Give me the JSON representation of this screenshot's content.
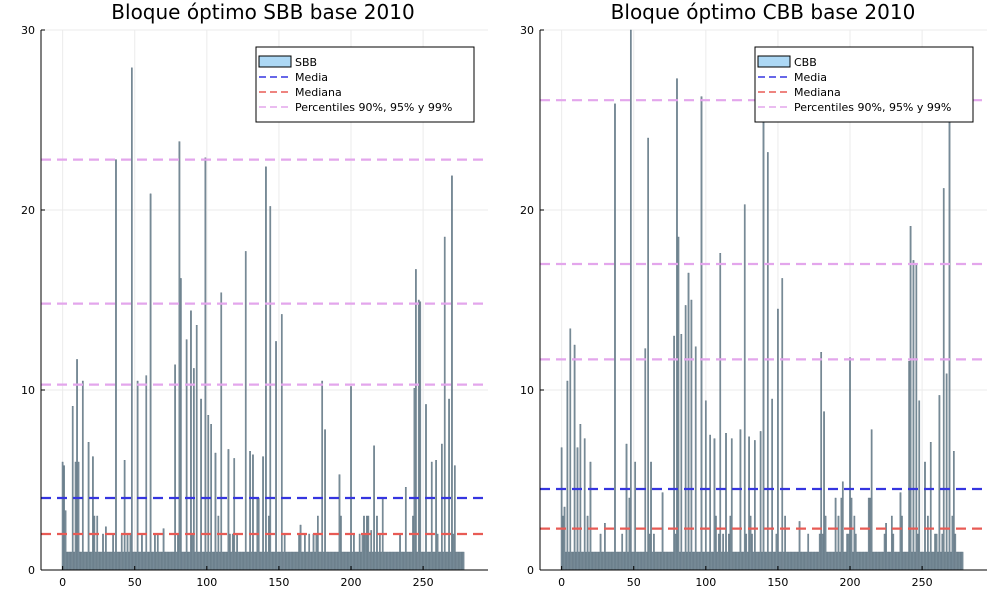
{
  "chart_data": [
    {
      "type": "bar",
      "title": "Bloque óptimo SBB base 2010",
      "xlabel": "",
      "ylabel": "",
      "xlim": [
        -15,
        295
      ],
      "ylim": [
        0,
        30
      ],
      "xticks": [
        0,
        50,
        100,
        150,
        200,
        250
      ],
      "yticks": [
        0,
        10,
        20,
        30
      ],
      "grid": true,
      "legend_position": "top-right",
      "legend": {
        "bars": "SBB",
        "mean": "Media",
        "median": "Mediana",
        "percentiles": "Percentiles 90%, 95% y 99%"
      },
      "reference_lines": {
        "mean": 4.0,
        "median": 2.0,
        "percentiles": [
          10.3,
          14.8,
          22.8
        ]
      },
      "peaks": [
        [
          0,
          6.0
        ],
        [
          1,
          5.8
        ],
        [
          2,
          3.3
        ],
        [
          7,
          9.1
        ],
        [
          9,
          6.0
        ],
        [
          10,
          11.7
        ],
        [
          11,
          6.0
        ],
        [
          14,
          10.5
        ],
        [
          18,
          7.1
        ],
        [
          21,
          6.3
        ],
        [
          30,
          2.4
        ],
        [
          37,
          22.8
        ],
        [
          43,
          6.1
        ],
        [
          48,
          27.9
        ],
        [
          52,
          10.5
        ],
        [
          58,
          10.8
        ],
        [
          61,
          20.9
        ],
        [
          70,
          2.3
        ],
        [
          78,
          11.4
        ],
        [
          81,
          23.8
        ],
        [
          82,
          16.2
        ],
        [
          86,
          12.8
        ],
        [
          89,
          14.4
        ],
        [
          91,
          11.2
        ],
        [
          93,
          13.6
        ],
        [
          96,
          9.5
        ],
        [
          99,
          22.9
        ],
        [
          101,
          8.6
        ],
        [
          103,
          8.1
        ],
        [
          106,
          6.5
        ],
        [
          110,
          15.4
        ],
        [
          115,
          6.7
        ],
        [
          119,
          6.2
        ],
        [
          127,
          17.7
        ],
        [
          130,
          6.6
        ],
        [
          132,
          6.4
        ],
        [
          139,
          6.3
        ],
        [
          141,
          22.4
        ],
        [
          144,
          20.2
        ],
        [
          148,
          12.7
        ],
        [
          152,
          14.2
        ],
        [
          165,
          2.5
        ],
        [
          180,
          10.5
        ],
        [
          182,
          7.8
        ],
        [
          192,
          5.3
        ],
        [
          200,
          10.2
        ],
        [
          214,
          2.2
        ],
        [
          216,
          6.9
        ],
        [
          234,
          2.0
        ],
        [
          238,
          4.6
        ],
        [
          244,
          10.1
        ],
        [
          245,
          16.7
        ],
        [
          247,
          15.0
        ],
        [
          248,
          14.9
        ],
        [
          252,
          9.2
        ],
        [
          256,
          6.0
        ],
        [
          259,
          6.1
        ],
        [
          263,
          7.0
        ],
        [
          265,
          18.5
        ],
        [
          268,
          9.5
        ],
        [
          270,
          21.9
        ],
        [
          272,
          5.8
        ]
      ]
    },
    {
      "type": "bar",
      "title": "Bloque óptimo CBB base 2010",
      "xlabel": "",
      "ylabel": "",
      "xlim": [
        -15,
        295
      ],
      "ylim": [
        0,
        30
      ],
      "xticks": [
        0,
        50,
        100,
        150,
        200,
        250
      ],
      "yticks": [
        0,
        10,
        20,
        30
      ],
      "grid": true,
      "legend_position": "top-right",
      "legend": {
        "bars": "CBB",
        "mean": "Media",
        "median": "Mediana",
        "percentiles": "Percentiles 90%, 95% y 99%"
      },
      "reference_lines": {
        "mean": 4.5,
        "median": 2.3,
        "percentiles": [
          11.7,
          17.0,
          26.1
        ]
      },
      "peaks": [
        [
          0,
          6.8
        ],
        [
          2,
          3.5
        ],
        [
          4,
          10.5
        ],
        [
          6,
          13.4
        ],
        [
          9,
          12.5
        ],
        [
          11,
          6.8
        ],
        [
          13,
          8.1
        ],
        [
          16,
          7.3
        ],
        [
          20,
          6.0
        ],
        [
          30,
          2.6
        ],
        [
          37,
          25.9
        ],
        [
          45,
          7.0
        ],
        [
          48,
          30.0
        ],
        [
          51,
          6.0
        ],
        [
          58,
          12.3
        ],
        [
          60,
          24.0
        ],
        [
          62,
          6.0
        ],
        [
          70,
          4.3
        ],
        [
          78,
          13.0
        ],
        [
          80,
          27.3
        ],
        [
          81,
          18.5
        ],
        [
          83,
          13.1
        ],
        [
          86,
          14.7
        ],
        [
          88,
          16.5
        ],
        [
          90,
          15.0
        ],
        [
          93,
          12.4
        ],
        [
          97,
          26.3
        ],
        [
          100,
          9.4
        ],
        [
          103,
          7.5
        ],
        [
          106,
          7.3
        ],
        [
          110,
          17.6
        ],
        [
          114,
          7.6
        ],
        [
          118,
          7.3
        ],
        [
          124,
          7.8
        ],
        [
          127,
          20.3
        ],
        [
          130,
          7.4
        ],
        [
          134,
          7.2
        ],
        [
          138,
          7.7
        ],
        [
          140,
          27.6
        ],
        [
          143,
          23.2
        ],
        [
          146,
          9.5
        ],
        [
          150,
          14.5
        ],
        [
          153,
          16.2
        ],
        [
          165,
          2.7
        ],
        [
          180,
          12.1
        ],
        [
          182,
          8.8
        ],
        [
          195,
          4.9
        ],
        [
          200,
          11.8
        ],
        [
          215,
          7.8
        ],
        [
          225,
          2.6
        ],
        [
          235,
          4.3
        ],
        [
          241,
          11.6
        ],
        [
          242,
          19.1
        ],
        [
          244,
          17.2
        ],
        [
          246,
          17.0
        ],
        [
          248,
          9.4
        ],
        [
          252,
          6.0
        ],
        [
          256,
          7.1
        ],
        [
          262,
          9.7
        ],
        [
          265,
          21.2
        ],
        [
          267,
          10.9
        ],
        [
          269,
          25.5
        ],
        [
          272,
          6.6
        ]
      ]
    }
  ]
}
